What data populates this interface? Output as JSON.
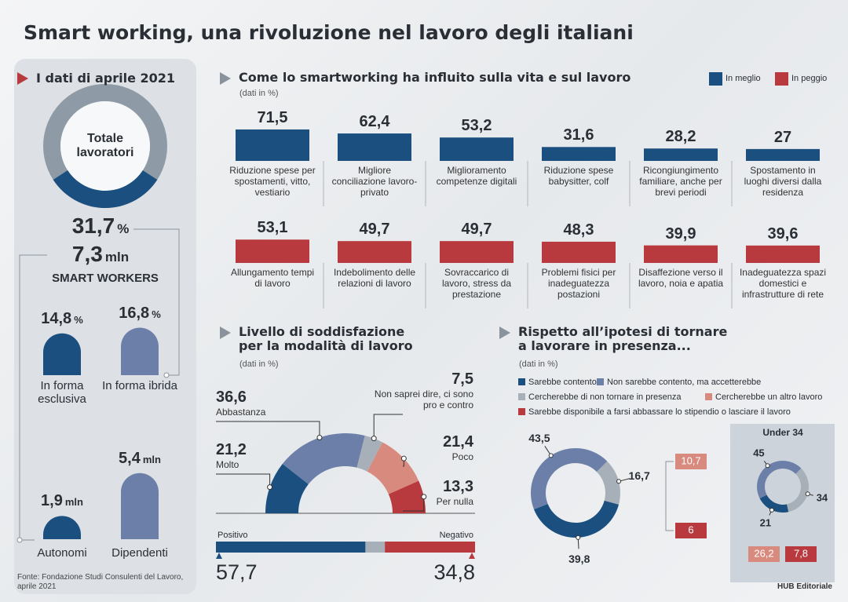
{
  "title": "Smart working, una rivoluzione nel lavoro degli italiani",
  "source": "Fonte: Fondazione Studi Consulenti del Lavoro, aprile 2021",
  "credit": "HUB Editoriale",
  "left_panel": {
    "heading": "I dati di aprile 2021",
    "donut_label": "Totale lavoratori",
    "share": {
      "value": 31.7,
      "label": "31,7",
      "unit": "%",
      "color": "#1b4f80"
    },
    "count": {
      "value": 7.3,
      "label": "7,3",
      "unit": "mln"
    },
    "caption": "SMART WORKERS",
    "by_mode": [
      {
        "name": "In forma esclusiva",
        "value": 14.8,
        "label": "14,8",
        "unit": "%",
        "color": "#1b4f80"
      },
      {
        "name": "In forma ibrida",
        "value": 16.8,
        "label": "16,8",
        "unit": "%",
        "color": "#6b7fa8"
      }
    ],
    "by_type": [
      {
        "name": "Autonomi",
        "value": 1.9,
        "label": "1,9",
        "unit": "mln",
        "color": "#1b4f80"
      },
      {
        "name": "Dipendenti",
        "value": 5.4,
        "label": "5,4",
        "unit": "mln",
        "color": "#6b7fa8"
      }
    ]
  },
  "impact": {
    "type": "bar",
    "title": "Come lo smartworking ha influito sulla vita e sul lavoro",
    "subtitle": "(dati in %)",
    "series": [
      {
        "name": "In meglio",
        "color": "#1b4f80",
        "categories": [
          "Riduzione spese per spostamenti, vitto, vestiario",
          "Migliore conciliazione lavoro-privato",
          "Miglioramento competenze digitali",
          "Riduzione spese babysitter, colf",
          "Ricongiungimento familiare, anche per brevi periodi",
          "Spostamento in luoghi diversi dalla residenza"
        ],
        "values": [
          71.5,
          62.4,
          53.2,
          31.6,
          28.2,
          27
        ],
        "value_labels": [
          "71,5",
          "62,4",
          "53,2",
          "31,6",
          "28,2",
          "27"
        ]
      },
      {
        "name": "In peggio",
        "color": "#b83a3e",
        "categories": [
          "Allungamento tempi di lavoro",
          "Indebolimento delle relazioni di lavoro",
          "Sovraccarico di lavoro, stress da prestazione",
          "Problemi fisici per inadeguatezza postazioni",
          "Disaffezione verso il lavoro, noia e apatia",
          "Inadeguatezza spazi domestici e infrastrutture di rete"
        ],
        "values": [
          53.1,
          49.7,
          49.7,
          48.3,
          39.9,
          39.6
        ],
        "value_labels": [
          "53,1",
          "49,7",
          "49,7",
          "48,3",
          "39,9",
          "39,6"
        ]
      }
    ]
  },
  "satisfaction": {
    "type": "semi-donut",
    "title": "Livello di soddisfazione per la modalità di lavoro",
    "subtitle": "(dati in %)",
    "categories": [
      "Molto",
      "Abbastanza",
      "Non saprei dire, ci sono pro e contro",
      "Poco",
      "Per nulla"
    ],
    "values": [
      21.2,
      36.6,
      7.5,
      21.4,
      13.3
    ],
    "value_labels": [
      "21,2",
      "36,6",
      "7,5",
      "21,4",
      "13,3"
    ],
    "colors": [
      "#1b4f80",
      "#6b7fa8",
      "#a7b0b8",
      "#d98a7e",
      "#b83a3e"
    ],
    "balance": {
      "categories": [
        "Positivo",
        "Negativo"
      ],
      "values": [
        57.7,
        34.8
      ],
      "value_labels": [
        "57,7",
        "34,8"
      ],
      "colors": [
        "#1b4f80",
        "#b83a3e"
      ]
    }
  },
  "return": {
    "type": "donut",
    "title": "Rispetto all’ipotesi di tornare a lavorare in presenza...",
    "subtitle": "(dati in %)",
    "categories": [
      "Sarebbe contento",
      "Non sarebbe contento, ma accetterebbe",
      "Cercherebbe di non tornare in presenza",
      "Cercherebbe un altro lavoro",
      "Sarebbe disponibile a farsi abbassare lo stipendio o lasciare il lavoro"
    ],
    "colors": [
      "#1b4f80",
      "#6b7fa8",
      "#a7b0b8",
      "#d98a7e",
      "#b83a3e"
    ],
    "values": [
      39.8,
      43.5,
      16.7,
      10.7,
      6
    ],
    "value_labels": [
      "39,8",
      "43,5",
      "16,7",
      "10,7",
      "6"
    ],
    "under34": {
      "title": "Under 34",
      "values": [
        21,
        45,
        34,
        26.2,
        7.8
      ],
      "value_labels": [
        "21",
        "45",
        "34",
        "26,2",
        "7,8"
      ]
    }
  }
}
